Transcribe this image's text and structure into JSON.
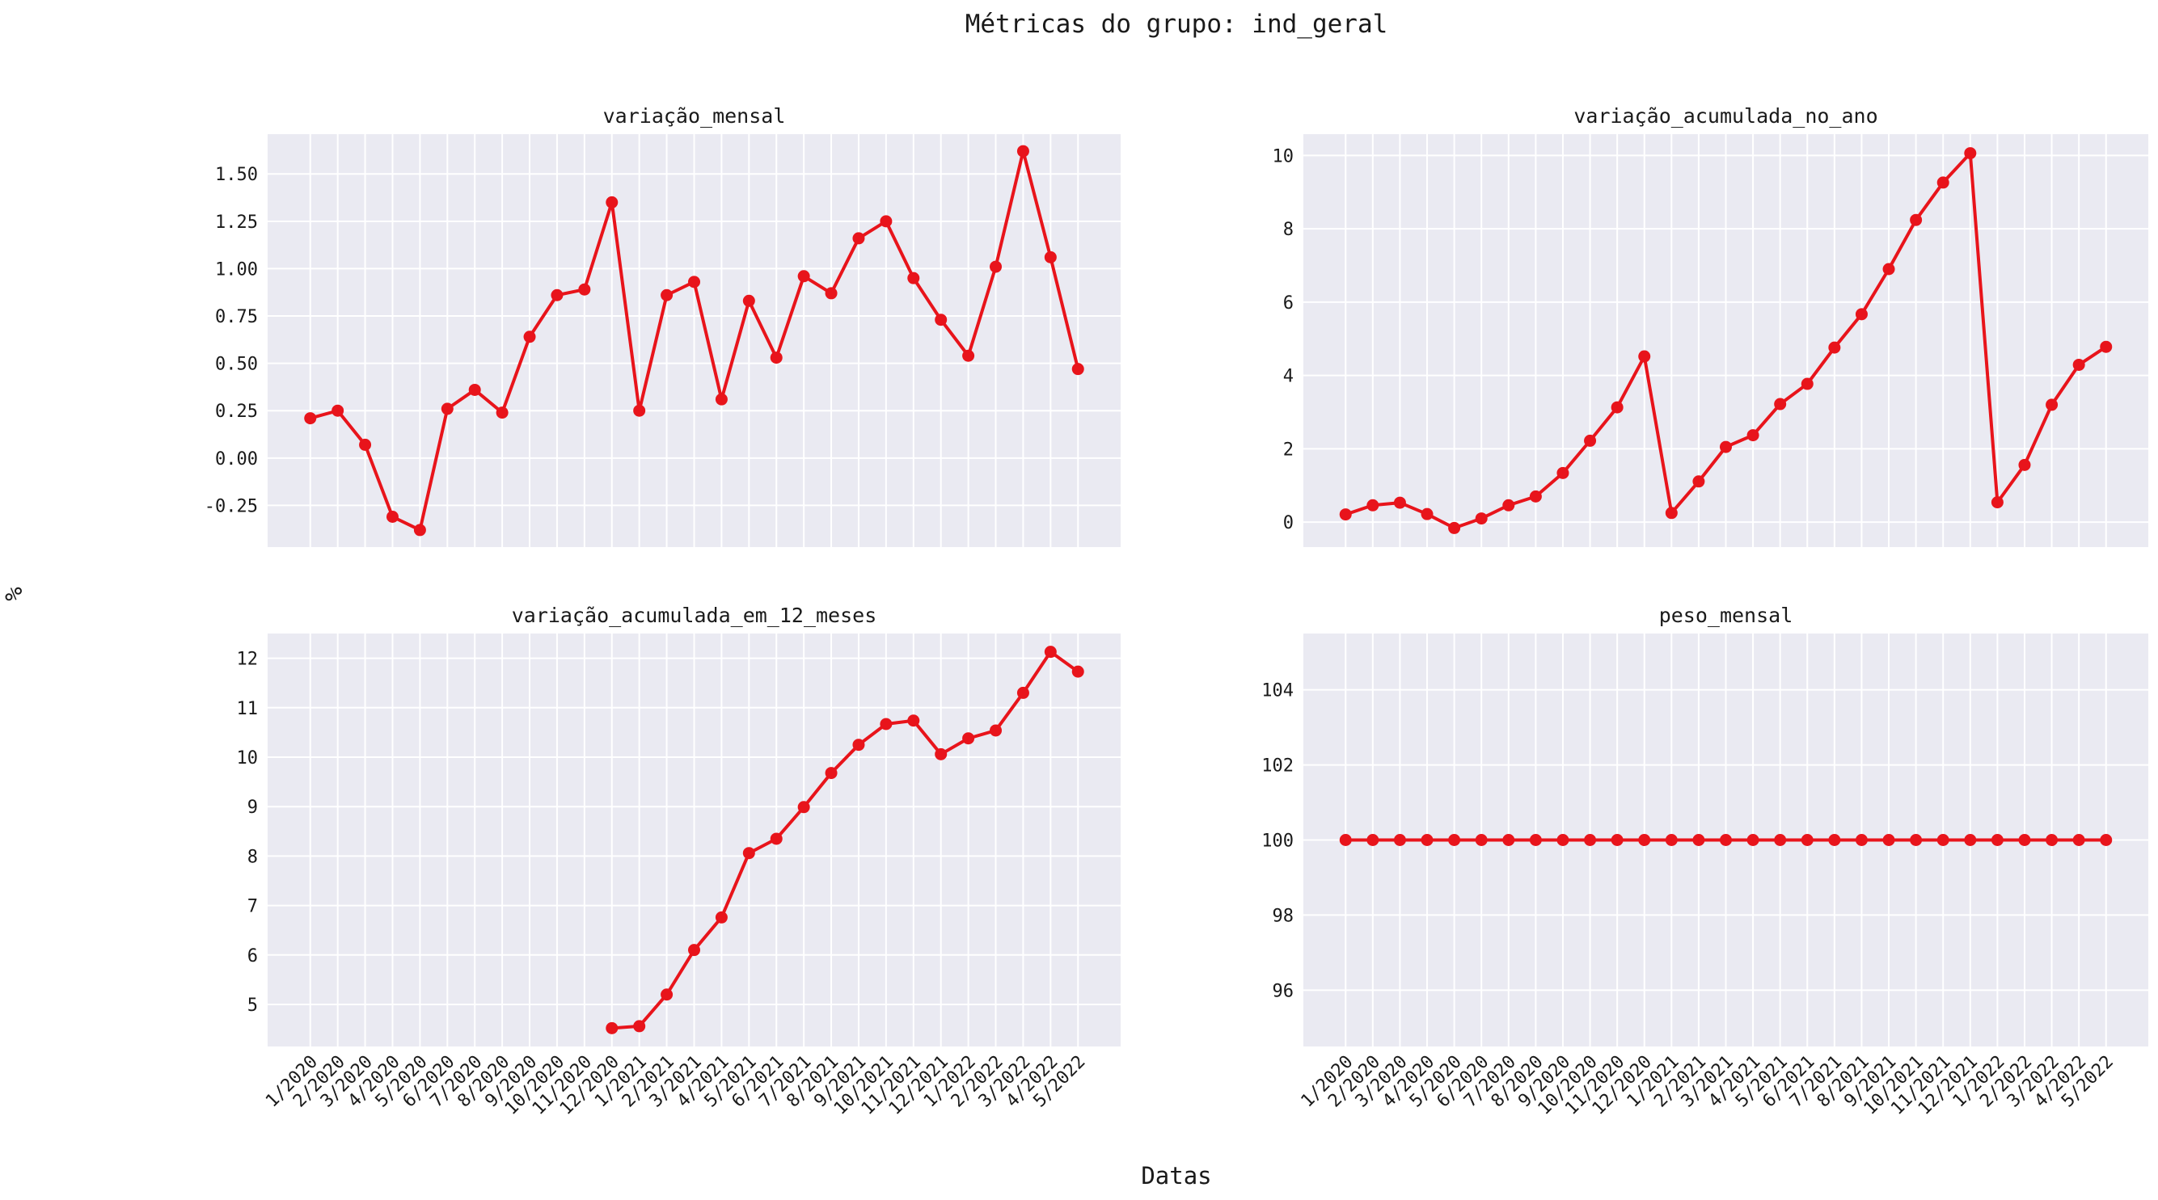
{
  "figure": {
    "suptitle": "Métricas do grupo: ind_geral",
    "xlabel": "Datas",
    "ylabel": "%"
  },
  "chart_data": [
    {
      "type": "line",
      "title": "variação_mensal",
      "categories": [
        "1/2020",
        "2/2020",
        "3/2020",
        "4/2020",
        "5/2020",
        "6/2020",
        "7/2020",
        "8/2020",
        "9/2020",
        "10/2020",
        "11/2020",
        "12/2020",
        "1/2021",
        "2/2021",
        "3/2021",
        "4/2021",
        "5/2021",
        "6/2021",
        "7/2021",
        "8/2021",
        "9/2021",
        "10/2021",
        "11/2021",
        "12/2021",
        "1/2022",
        "2/2022",
        "3/2022",
        "4/2022",
        "5/2022"
      ],
      "values": [
        0.21,
        0.25,
        0.07,
        -0.31,
        -0.38,
        0.26,
        0.36,
        0.24,
        0.64,
        0.86,
        0.89,
        1.35,
        0.25,
        0.86,
        0.93,
        0.31,
        0.83,
        0.53,
        0.96,
        0.87,
        1.16,
        1.25,
        0.95,
        0.73,
        0.54,
        1.01,
        1.62,
        1.06,
        0.47
      ],
      "ylim": [
        -0.47,
        1.71
      ],
      "yticks": [
        "-0.25",
        "0.00",
        "0.25",
        "0.50",
        "0.75",
        "1.00",
        "1.25",
        "1.50"
      ],
      "show_xticklabels": false,
      "grid": true,
      "color": "#e8141b"
    },
    {
      "type": "line",
      "title": "variação_acumulada_no_ano",
      "categories": [
        "1/2020",
        "2/2020",
        "3/2020",
        "4/2020",
        "5/2020",
        "6/2020",
        "7/2020",
        "8/2020",
        "9/2020",
        "10/2020",
        "11/2020",
        "12/2020",
        "1/2021",
        "2/2021",
        "3/2021",
        "4/2021",
        "5/2021",
        "6/2021",
        "7/2021",
        "8/2021",
        "9/2021",
        "10/2021",
        "11/2021",
        "12/2021",
        "1/2022",
        "2/2022",
        "3/2022",
        "4/2022",
        "5/2022"
      ],
      "values": [
        0.21,
        0.46,
        0.53,
        0.22,
        -0.16,
        0.1,
        0.46,
        0.7,
        1.34,
        2.22,
        3.13,
        4.52,
        0.25,
        1.11,
        2.05,
        2.37,
        3.22,
        3.77,
        4.76,
        5.67,
        6.9,
        8.24,
        9.26,
        10.06,
        0.54,
        1.56,
        3.2,
        4.29,
        4.78
      ],
      "ylim": [
        -0.68,
        10.58
      ],
      "yticks": [
        "0",
        "2",
        "4",
        "6",
        "8",
        "10"
      ],
      "show_xticklabels": false,
      "grid": true,
      "color": "#e8141b"
    },
    {
      "type": "line",
      "title": "variação_acumulada_em_12_meses",
      "categories": [
        "1/2020",
        "2/2020",
        "3/2020",
        "4/2020",
        "5/2020",
        "6/2020",
        "7/2020",
        "8/2020",
        "9/2020",
        "10/2020",
        "11/2020",
        "12/2020",
        "1/2021",
        "2/2021",
        "3/2021",
        "4/2021",
        "5/2021",
        "6/2021",
        "7/2021",
        "8/2021",
        "9/2021",
        "10/2021",
        "11/2021",
        "12/2021",
        "1/2022",
        "2/2022",
        "3/2022",
        "4/2022",
        "5/2022"
      ],
      "values": [
        null,
        null,
        null,
        null,
        null,
        null,
        null,
        null,
        null,
        null,
        null,
        4.52,
        4.56,
        5.2,
        6.1,
        6.76,
        8.06,
        8.35,
        8.99,
        9.68,
        10.25,
        10.67,
        10.74,
        10.06,
        10.38,
        10.54,
        11.3,
        12.13,
        11.73
      ],
      "ylim": [
        4.15,
        12.5
      ],
      "yticks": [
        "5",
        "6",
        "7",
        "8",
        "9",
        "10",
        "11",
        "12"
      ],
      "show_xticklabels": true,
      "grid": true,
      "color": "#e8141b"
    },
    {
      "type": "line",
      "title": "peso_mensal",
      "categories": [
        "1/2020",
        "2/2020",
        "3/2020",
        "4/2020",
        "5/2020",
        "6/2020",
        "7/2020",
        "8/2020",
        "9/2020",
        "10/2020",
        "11/2020",
        "12/2020",
        "1/2021",
        "2/2021",
        "3/2021",
        "4/2021",
        "5/2021",
        "6/2021",
        "7/2021",
        "8/2021",
        "9/2021",
        "10/2021",
        "11/2021",
        "12/2021",
        "1/2022",
        "2/2022",
        "3/2022",
        "4/2022",
        "5/2022"
      ],
      "values": [
        100,
        100,
        100,
        100,
        100,
        100,
        100,
        100,
        100,
        100,
        100,
        100,
        100,
        100,
        100,
        100,
        100,
        100,
        100,
        100,
        100,
        100,
        100,
        100,
        100,
        100,
        100,
        100,
        100
      ],
      "ylim": [
        94.5,
        105.5
      ],
      "yticks": [
        "96",
        "98",
        "100",
        "102",
        "104"
      ],
      "show_xticklabels": true,
      "grid": true,
      "color": "#e8141b"
    }
  ]
}
